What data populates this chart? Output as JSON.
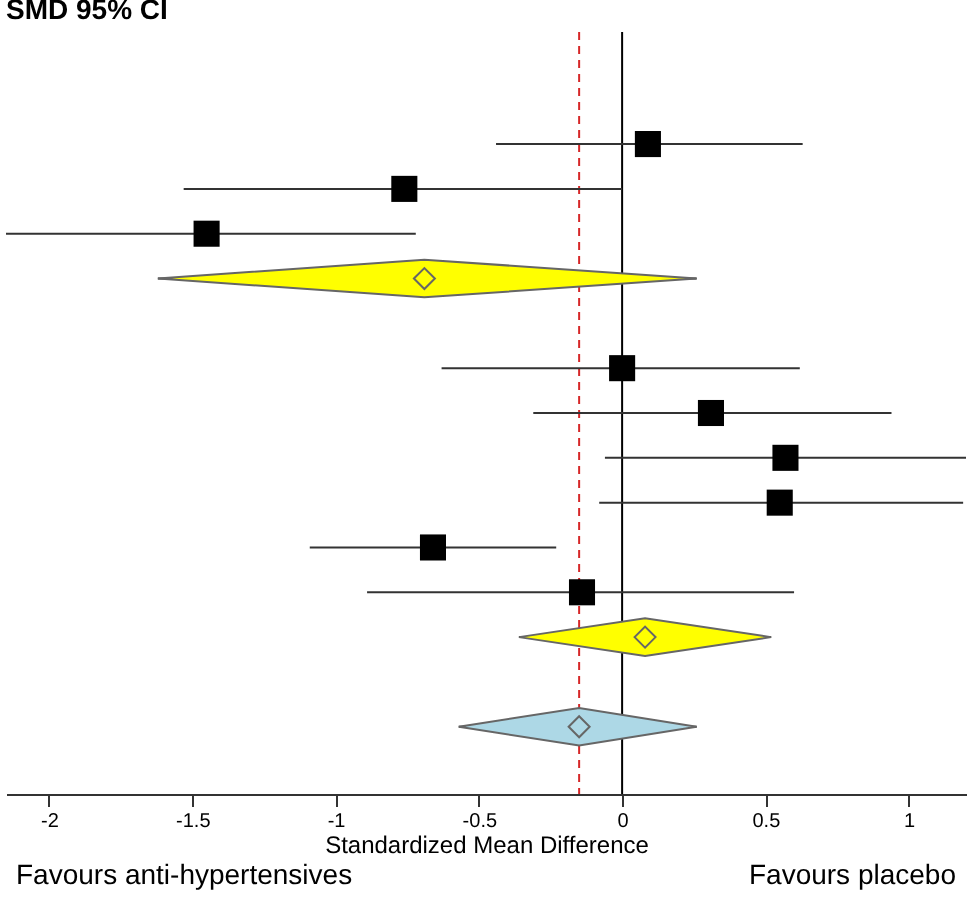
{
  "chart_data": {
    "type": "scatter",
    "title": "SMD 95% CI",
    "xlabel": "Standardized Mean Difference",
    "orientation": "horizontal",
    "categories": [
      null,
      null,
      null,
      null,
      null,
      null,
      null,
      null,
      null,
      null,
      null,
      null,
      null,
      null,
      null,
      null,
      null
    ],
    "series": [
      {
        "marker": "square",
        "color": "#000000",
        "values": [
          null,
          null,
          0.09,
          -0.76,
          -1.45,
          null,
          null,
          0.0,
          0.31,
          0.57,
          0.55,
          -0.66,
          -0.14,
          null,
          null,
          null,
          null
        ],
        "errors": [
          null,
          null,
          [
            -0.44,
            0.63
          ],
          [
            -1.53,
            0.0
          ],
          [
            -2.15,
            -0.72
          ],
          null,
          null,
          [
            -0.63,
            0.62
          ],
          [
            -0.31,
            0.94
          ],
          [
            -0.06,
            1.2
          ],
          [
            -0.08,
            1.19
          ],
          [
            -1.09,
            -0.23
          ],
          [
            -0.89,
            0.6
          ],
          null,
          null,
          null,
          null
        ]
      },
      {
        "marker": "diamond",
        "colors": [
          null,
          null,
          null,
          null,
          null,
          "#ffff00",
          null,
          null,
          null,
          null,
          null,
          null,
          null,
          "#ffff00",
          null,
          "#add8e6",
          null
        ],
        "values": [
          null,
          null,
          null,
          null,
          null,
          -0.69,
          null,
          null,
          null,
          null,
          null,
          null,
          null,
          0.08,
          null,
          -0.15,
          null
        ],
        "errors": [
          null,
          null,
          null,
          null,
          null,
          [
            -1.62,
            0.26
          ],
          null,
          null,
          null,
          null,
          null,
          null,
          null,
          [
            -0.36,
            0.52
          ],
          null,
          [
            -0.57,
            0.26
          ],
          null
        ]
      }
    ],
    "xlim": [
      -2.15,
      1.2
    ],
    "xticks": [
      -2,
      -1.5,
      -1,
      -0.5,
      0,
      0.5,
      1
    ],
    "tick_labels": "x",
    "ref_lines": [
      {
        "axis": "x",
        "value": -0.15,
        "color": "#d62728",
        "line_style": "dashed"
      },
      {
        "axis": "x",
        "value": 0,
        "color": "#000000",
        "line_style": "solid"
      }
    ],
    "annotations": [
      "Favours anti-hypertensives",
      "Favours placebo"
    ]
  }
}
